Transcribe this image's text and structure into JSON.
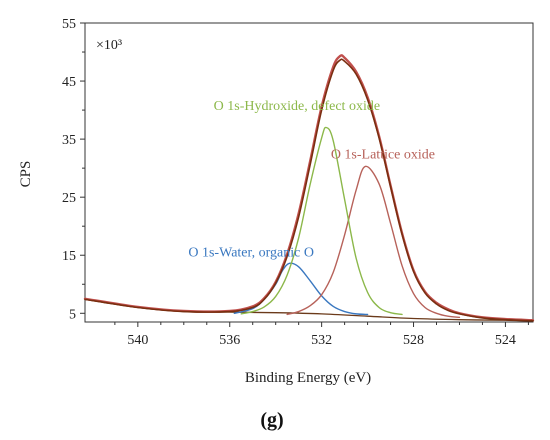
{
  "chart_data": {
    "type": "line",
    "xlabel": "Binding Energy (eV)",
    "ylabel": "CPS",
    "y_multiplier_label": "×10³",
    "panel_label": "(g)",
    "xlim": [
      542.3,
      522.8
    ],
    "ylim": [
      3.5,
      55
    ],
    "x_ticks": [
      "540",
      "536",
      "532",
      "528",
      "524"
    ],
    "y_ticks": [
      "5",
      "15",
      "25",
      "35",
      "45",
      "55"
    ],
    "x_reversed": true,
    "grid": false,
    "colors": {
      "measured": "#c0504d",
      "envelope": "#7a2e10",
      "hydroxide": "#8cb84a",
      "lattice": "#b7625a",
      "water": "#3a78c0",
      "background": "#6b3a1a"
    },
    "series": [
      {
        "key": "measured",
        "x": [
          542.3,
          540,
          538,
          536,
          535,
          534.5,
          534,
          533.5,
          533,
          532.5,
          532,
          531.5,
          531.2,
          531,
          530.5,
          530,
          529.5,
          529,
          528.5,
          528,
          527.5,
          527,
          526.5,
          526,
          525,
          524,
          522.8
        ],
        "y": [
          7.5,
          6.1,
          5.4,
          5.4,
          6.2,
          7.6,
          10.4,
          15.2,
          22.2,
          31.2,
          40.6,
          47.4,
          49.3,
          49.0,
          46.6,
          42.2,
          35.5,
          27.0,
          18.8,
          12.4,
          8.7,
          6.8,
          5.7,
          5.0,
          4.3,
          4.0,
          3.8
        ]
      },
      {
        "key": "envelope",
        "x": [
          542.3,
          540,
          538,
          536,
          535,
          534.5,
          534,
          533.5,
          533,
          532.5,
          532,
          531.5,
          531.2,
          531,
          530.5,
          530,
          529.5,
          529,
          528.5,
          528,
          527.5,
          527,
          526.5,
          526,
          525,
          524,
          522.8
        ],
        "y": [
          7.4,
          6.0,
          5.3,
          5.3,
          6.0,
          7.4,
          10.2,
          14.8,
          21.6,
          30.6,
          40.0,
          46.8,
          48.6,
          48.4,
          46.2,
          41.8,
          35.2,
          26.8,
          18.6,
          12.2,
          8.5,
          6.6,
          5.5,
          4.9,
          4.2,
          3.9,
          3.7
        ]
      },
      {
        "key": "hydroxide",
        "x": [
          535.5,
          535,
          534.5,
          534,
          533.5,
          533,
          532.5,
          532,
          531.8,
          531.5,
          531,
          530.5,
          530,
          529.5,
          529,
          528.5
        ],
        "y": [
          4.9,
          5.3,
          6.1,
          7.9,
          11.6,
          18.0,
          27.2,
          35.2,
          37.0,
          34.8,
          24.6,
          14.5,
          8.6,
          6.0,
          5.1,
          4.8
        ]
      },
      {
        "key": "lattice",
        "x": [
          533.5,
          533,
          532.5,
          532,
          531.5,
          531,
          530.5,
          530.1,
          529.5,
          529,
          528.5,
          528,
          527.5,
          527,
          526.5,
          526
        ],
        "y": [
          4.8,
          5.3,
          6.3,
          8.2,
          12.0,
          18.5,
          26.2,
          30.3,
          27.3,
          20.5,
          13.2,
          8.4,
          6.0,
          5.0,
          4.5,
          4.3
        ]
      },
      {
        "key": "water",
        "x": [
          535.8,
          535,
          534.5,
          534,
          533.7,
          533.4,
          533,
          532.5,
          532,
          531.5,
          531,
          530.5,
          530
        ],
        "y": [
          5.0,
          5.8,
          7.4,
          10.0,
          12.4,
          13.6,
          13.0,
          10.6,
          8.0,
          6.2,
          5.3,
          4.9,
          4.8
        ]
      },
      {
        "key": "background",
        "x": [
          542.3,
          540,
          538,
          536,
          534,
          532,
          530,
          528,
          526,
          524,
          522.8
        ],
        "y": [
          7.4,
          6.0,
          5.3,
          5.2,
          5.1,
          4.9,
          4.5,
          4.1,
          3.9,
          3.8,
          3.7
        ]
      }
    ],
    "annotations": [
      {
        "text": "O 1s-Hydroxide, defect oxide",
        "x": 536.7,
        "y": 40.0,
        "color_key": "hydroxide"
      },
      {
        "text": "O 1s-Lattice oxide",
        "x": 531.6,
        "y": 31.7,
        "color_key": "lattice"
      },
      {
        "text": "O 1s-Water, organic O",
        "x": 537.8,
        "y": 14.8,
        "color_key": "water"
      }
    ]
  }
}
